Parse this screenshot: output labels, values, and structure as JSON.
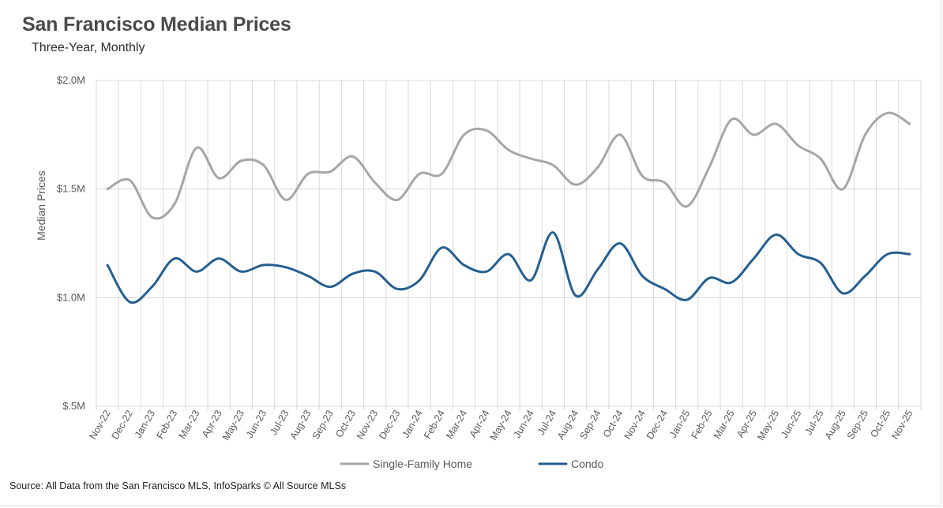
{
  "header": {
    "title": "San Francisco Median Prices",
    "subtitle": "Three-Year, Monthly"
  },
  "footer": {
    "source": "Source: All Data from the San Francisco MLS, InfoSparks © All Source MLSs"
  },
  "colors": {
    "single_family": "#a6a6a6",
    "condo": "#255e91",
    "grid": "#d9d9d9",
    "text": "#595959"
  },
  "chart_data": {
    "type": "line",
    "title": "San Francisco Median Prices",
    "subtitle": "Three-Year, Monthly",
    "xlabel": "",
    "ylabel": "Median Prices",
    "ylim": [
      0.5,
      2.0
    ],
    "yticks": [
      2.0,
      1.5,
      1.0,
      0.5
    ],
    "ytick_labels": [
      "$2.0M",
      "$1.5M",
      "$1.0M",
      "$.5M"
    ],
    "grid": true,
    "legend_position": "bottom",
    "categories": [
      "Nov-22",
      "Dec-22",
      "Jan-23",
      "Feb-23",
      "Mar-23",
      "Apr-23",
      "May-23",
      "Jun-23",
      "Jul-23",
      "Aug-23",
      "Sep-23",
      "Oct-23",
      "Nov-23",
      "Dec-23",
      "Jan-24",
      "Feb-24",
      "Mar-24",
      "Apr-24",
      "May-24",
      "Jun-24",
      "Jul-24",
      "Aug-24",
      "Sep-24",
      "Oct-24",
      "Nov-24",
      "Dec-24",
      "Jan-25",
      "Feb-25",
      "Mar-25",
      "Apr-25",
      "May-25",
      "Jun-25",
      "Jul-25",
      "Aug-25",
      "Sep-25",
      "Oct-25",
      "Nov-25"
    ],
    "series": [
      {
        "name": "Single-Family Home",
        "values": [
          1.5,
          1.54,
          1.37,
          1.43,
          1.69,
          1.55,
          1.63,
          1.61,
          1.45,
          1.57,
          1.58,
          1.65,
          1.53,
          1.45,
          1.57,
          1.57,
          1.75,
          1.77,
          1.68,
          1.64,
          1.61,
          1.52,
          1.6,
          1.75,
          1.56,
          1.53,
          1.42,
          1.6,
          1.82,
          1.75,
          1.8,
          1.7,
          1.64,
          1.5,
          1.75,
          1.85,
          1.8
        ]
      },
      {
        "name": "Condo",
        "values": [
          1.15,
          0.98,
          1.05,
          1.18,
          1.12,
          1.18,
          1.12,
          1.15,
          1.14,
          1.1,
          1.05,
          1.11,
          1.12,
          1.04,
          1.08,
          1.23,
          1.15,
          1.12,
          1.2,
          1.08,
          1.3,
          1.01,
          1.13,
          1.25,
          1.1,
          1.04,
          0.99,
          1.09,
          1.07,
          1.18,
          1.29,
          1.2,
          1.16,
          1.02,
          1.1,
          1.2,
          1.2
        ]
      }
    ]
  }
}
